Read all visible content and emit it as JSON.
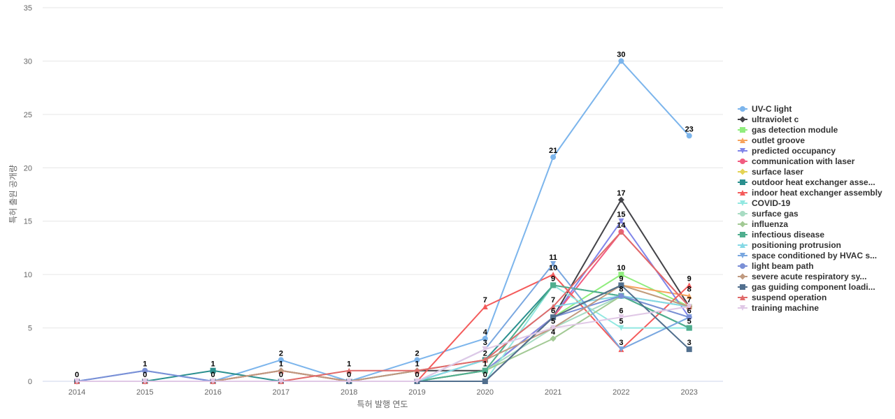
{
  "chart_data": {
    "type": "line",
    "title": "",
    "xlabel": "특허 발행 연도",
    "ylabel": "특허 출원 공개량",
    "ylim": [
      0,
      35
    ],
    "yticks": [
      0,
      5,
      10,
      15,
      20,
      25,
      30,
      35
    ],
    "categories": [
      "2014",
      "2015",
      "2016",
      "2017",
      "2018",
      "2019",
      "2020",
      "2021",
      "2022",
      "2023"
    ],
    "grid": true,
    "legend_position": "right",
    "series": [
      {
        "name": "UV-C light",
        "color": "#7cb5ec",
        "marker": "circle",
        "values": [
          0,
          1,
          0,
          2,
          0,
          2,
          4,
          21,
          30,
          23
        ]
      },
      {
        "name": "ultraviolet c",
        "color": "#434348",
        "marker": "diamond",
        "values": [
          0,
          0,
          0,
          1,
          0,
          1,
          1,
          6,
          17,
          7
        ]
      },
      {
        "name": "gas detection module",
        "color": "#90ed7d",
        "marker": "square",
        "values": [
          0,
          0,
          0,
          0,
          0,
          0,
          1,
          6,
          10,
          7
        ]
      },
      {
        "name": "outlet groove",
        "color": "#f7a35c",
        "marker": "triangle",
        "values": [
          0,
          0,
          0,
          0,
          0,
          0,
          1,
          6,
          9,
          8
        ]
      },
      {
        "name": "predicted occupancy",
        "color": "#8085e9",
        "marker": "triangle-down",
        "values": [
          0,
          0,
          0,
          0,
          0,
          0,
          1,
          6,
          15,
          6
        ]
      },
      {
        "name": "communication with laser",
        "color": "#f15c80",
        "marker": "circle",
        "values": [
          0,
          0,
          0,
          0,
          0,
          0,
          0,
          6,
          14,
          7
        ]
      },
      {
        "name": "surface laser",
        "color": "#e4d354",
        "marker": "diamond",
        "values": [
          0,
          0,
          0,
          0,
          0,
          0,
          0,
          6,
          9,
          7
        ]
      },
      {
        "name": "outdoor heat exchanger asse...",
        "color": "#2b908f",
        "marker": "square",
        "values": [
          0,
          0,
          1,
          0,
          0,
          0,
          2,
          9,
          8,
          5
        ]
      },
      {
        "name": "indoor heat exchanger assembly",
        "color": "#f45b5b",
        "marker": "triangle",
        "values": [
          0,
          0,
          0,
          1,
          0,
          0,
          7,
          10,
          3,
          9
        ]
      },
      {
        "name": "COVID-19",
        "color": "#91e8e1",
        "marker": "triangle-down",
        "values": [
          0,
          0,
          0,
          0,
          0,
          0,
          0,
          9,
          5,
          5
        ]
      },
      {
        "name": "surface gas",
        "color": "#a8dcc3",
        "marker": "circle",
        "values": [
          0,
          0,
          0,
          0,
          0,
          0,
          1,
          5,
          8,
          6
        ]
      },
      {
        "name": "influenza",
        "color": "#a2c994",
        "marker": "diamond",
        "values": [
          0,
          0,
          0,
          0,
          0,
          0,
          1,
          4,
          8,
          7
        ]
      },
      {
        "name": "infectious disease",
        "color": "#4fae8e",
        "marker": "square",
        "values": [
          0,
          0,
          0,
          0,
          0,
          0,
          1,
          9,
          8,
          5
        ]
      },
      {
        "name": "positioning protrusion",
        "color": "#85d9e6",
        "marker": "triangle",
        "values": [
          0,
          0,
          0,
          0,
          0,
          0,
          2,
          7,
          8,
          7
        ]
      },
      {
        "name": "space conditioned by HVAC s...",
        "color": "#79a7e0",
        "marker": "triangle-down",
        "values": [
          0,
          0,
          0,
          0,
          0,
          0,
          3,
          11,
          3,
          6
        ]
      },
      {
        "name": "light beam path",
        "color": "#7a8fd6",
        "marker": "circle",
        "values": [
          0,
          1,
          0,
          0,
          0,
          0,
          0,
          6,
          8,
          6
        ]
      },
      {
        "name": "severe acute respiratory sy...",
        "color": "#c09a80",
        "marker": "diamond",
        "values": [
          0,
          0,
          0,
          1,
          0,
          1,
          2,
          5,
          9,
          7
        ]
      },
      {
        "name": "gas guiding component loadi...",
        "color": "#516f8e",
        "marker": "square",
        "values": [
          0,
          0,
          0,
          0,
          0,
          0,
          0,
          6,
          9,
          3
        ]
      },
      {
        "name": "suspend operation",
        "color": "#e06a6a",
        "marker": "triangle",
        "values": [
          0,
          0,
          0,
          0,
          1,
          1,
          2,
          7,
          14,
          7
        ]
      },
      {
        "name": "training machine",
        "color": "#e0c8e6",
        "marker": "triangle-down",
        "values": [
          0,
          0,
          0,
          0,
          0,
          0,
          3,
          5,
          6,
          7
        ]
      }
    ],
    "data_labels": [
      {
        "x": "2014",
        "text": "0",
        "y": 0
      },
      {
        "x": "2015",
        "text": "1",
        "y": 1
      },
      {
        "x": "2015",
        "text": "0",
        "y": 0
      },
      {
        "x": "2016",
        "text": "1",
        "y": 1
      },
      {
        "x": "2016",
        "text": "0",
        "y": 0
      },
      {
        "x": "2017",
        "text": "2",
        "y": 2
      },
      {
        "x": "2017",
        "text": "1",
        "y": 1
      },
      {
        "x": "2017",
        "text": "0",
        "y": 0
      },
      {
        "x": "2018",
        "text": "1",
        "y": 1
      },
      {
        "x": "2018",
        "text": "0",
        "y": 0
      },
      {
        "x": "2019",
        "text": "2",
        "y": 2
      },
      {
        "x": "2019",
        "text": "1",
        "y": 1
      },
      {
        "x": "2019",
        "text": "0",
        "y": 0
      },
      {
        "x": "2020",
        "text": "7",
        "y": 7
      },
      {
        "x": "2020",
        "text": "4",
        "y": 4
      },
      {
        "x": "2020",
        "text": "3",
        "y": 3
      },
      {
        "x": "2020",
        "text": "2",
        "y": 2
      },
      {
        "x": "2020",
        "text": "1",
        "y": 1
      },
      {
        "x": "2020",
        "text": "0",
        "y": 0
      },
      {
        "x": "2021",
        "text": "21",
        "y": 21
      },
      {
        "x": "2021",
        "text": "11",
        "y": 11
      },
      {
        "x": "2021",
        "text": "10",
        "y": 10
      },
      {
        "x": "2021",
        "text": "9",
        "y": 9
      },
      {
        "x": "2021",
        "text": "7",
        "y": 7
      },
      {
        "x": "2021",
        "text": "6",
        "y": 6
      },
      {
        "x": "2021",
        "text": "5",
        "y": 5
      },
      {
        "x": "2021",
        "text": "4",
        "y": 4
      },
      {
        "x": "2022",
        "text": "30",
        "y": 30
      },
      {
        "x": "2022",
        "text": "17",
        "y": 17
      },
      {
        "x": "2022",
        "text": "15",
        "y": 15
      },
      {
        "x": "2022",
        "text": "14",
        "y": 14
      },
      {
        "x": "2022",
        "text": "10",
        "y": 10
      },
      {
        "x": "2022",
        "text": "9",
        "y": 9
      },
      {
        "x": "2022",
        "text": "8",
        "y": 8
      },
      {
        "x": "2022",
        "text": "6",
        "y": 6
      },
      {
        "x": "2022",
        "text": "5",
        "y": 5
      },
      {
        "x": "2022",
        "text": "3",
        "y": 3
      },
      {
        "x": "2023",
        "text": "23",
        "y": 23
      },
      {
        "x": "2023",
        "text": "9",
        "y": 9
      },
      {
        "x": "2023",
        "text": "8",
        "y": 8
      },
      {
        "x": "2023",
        "text": "7",
        "y": 7
      },
      {
        "x": "2023",
        "text": "6",
        "y": 6
      },
      {
        "x": "2023",
        "text": "5",
        "y": 5
      },
      {
        "x": "2023",
        "text": "3",
        "y": 3
      }
    ]
  }
}
